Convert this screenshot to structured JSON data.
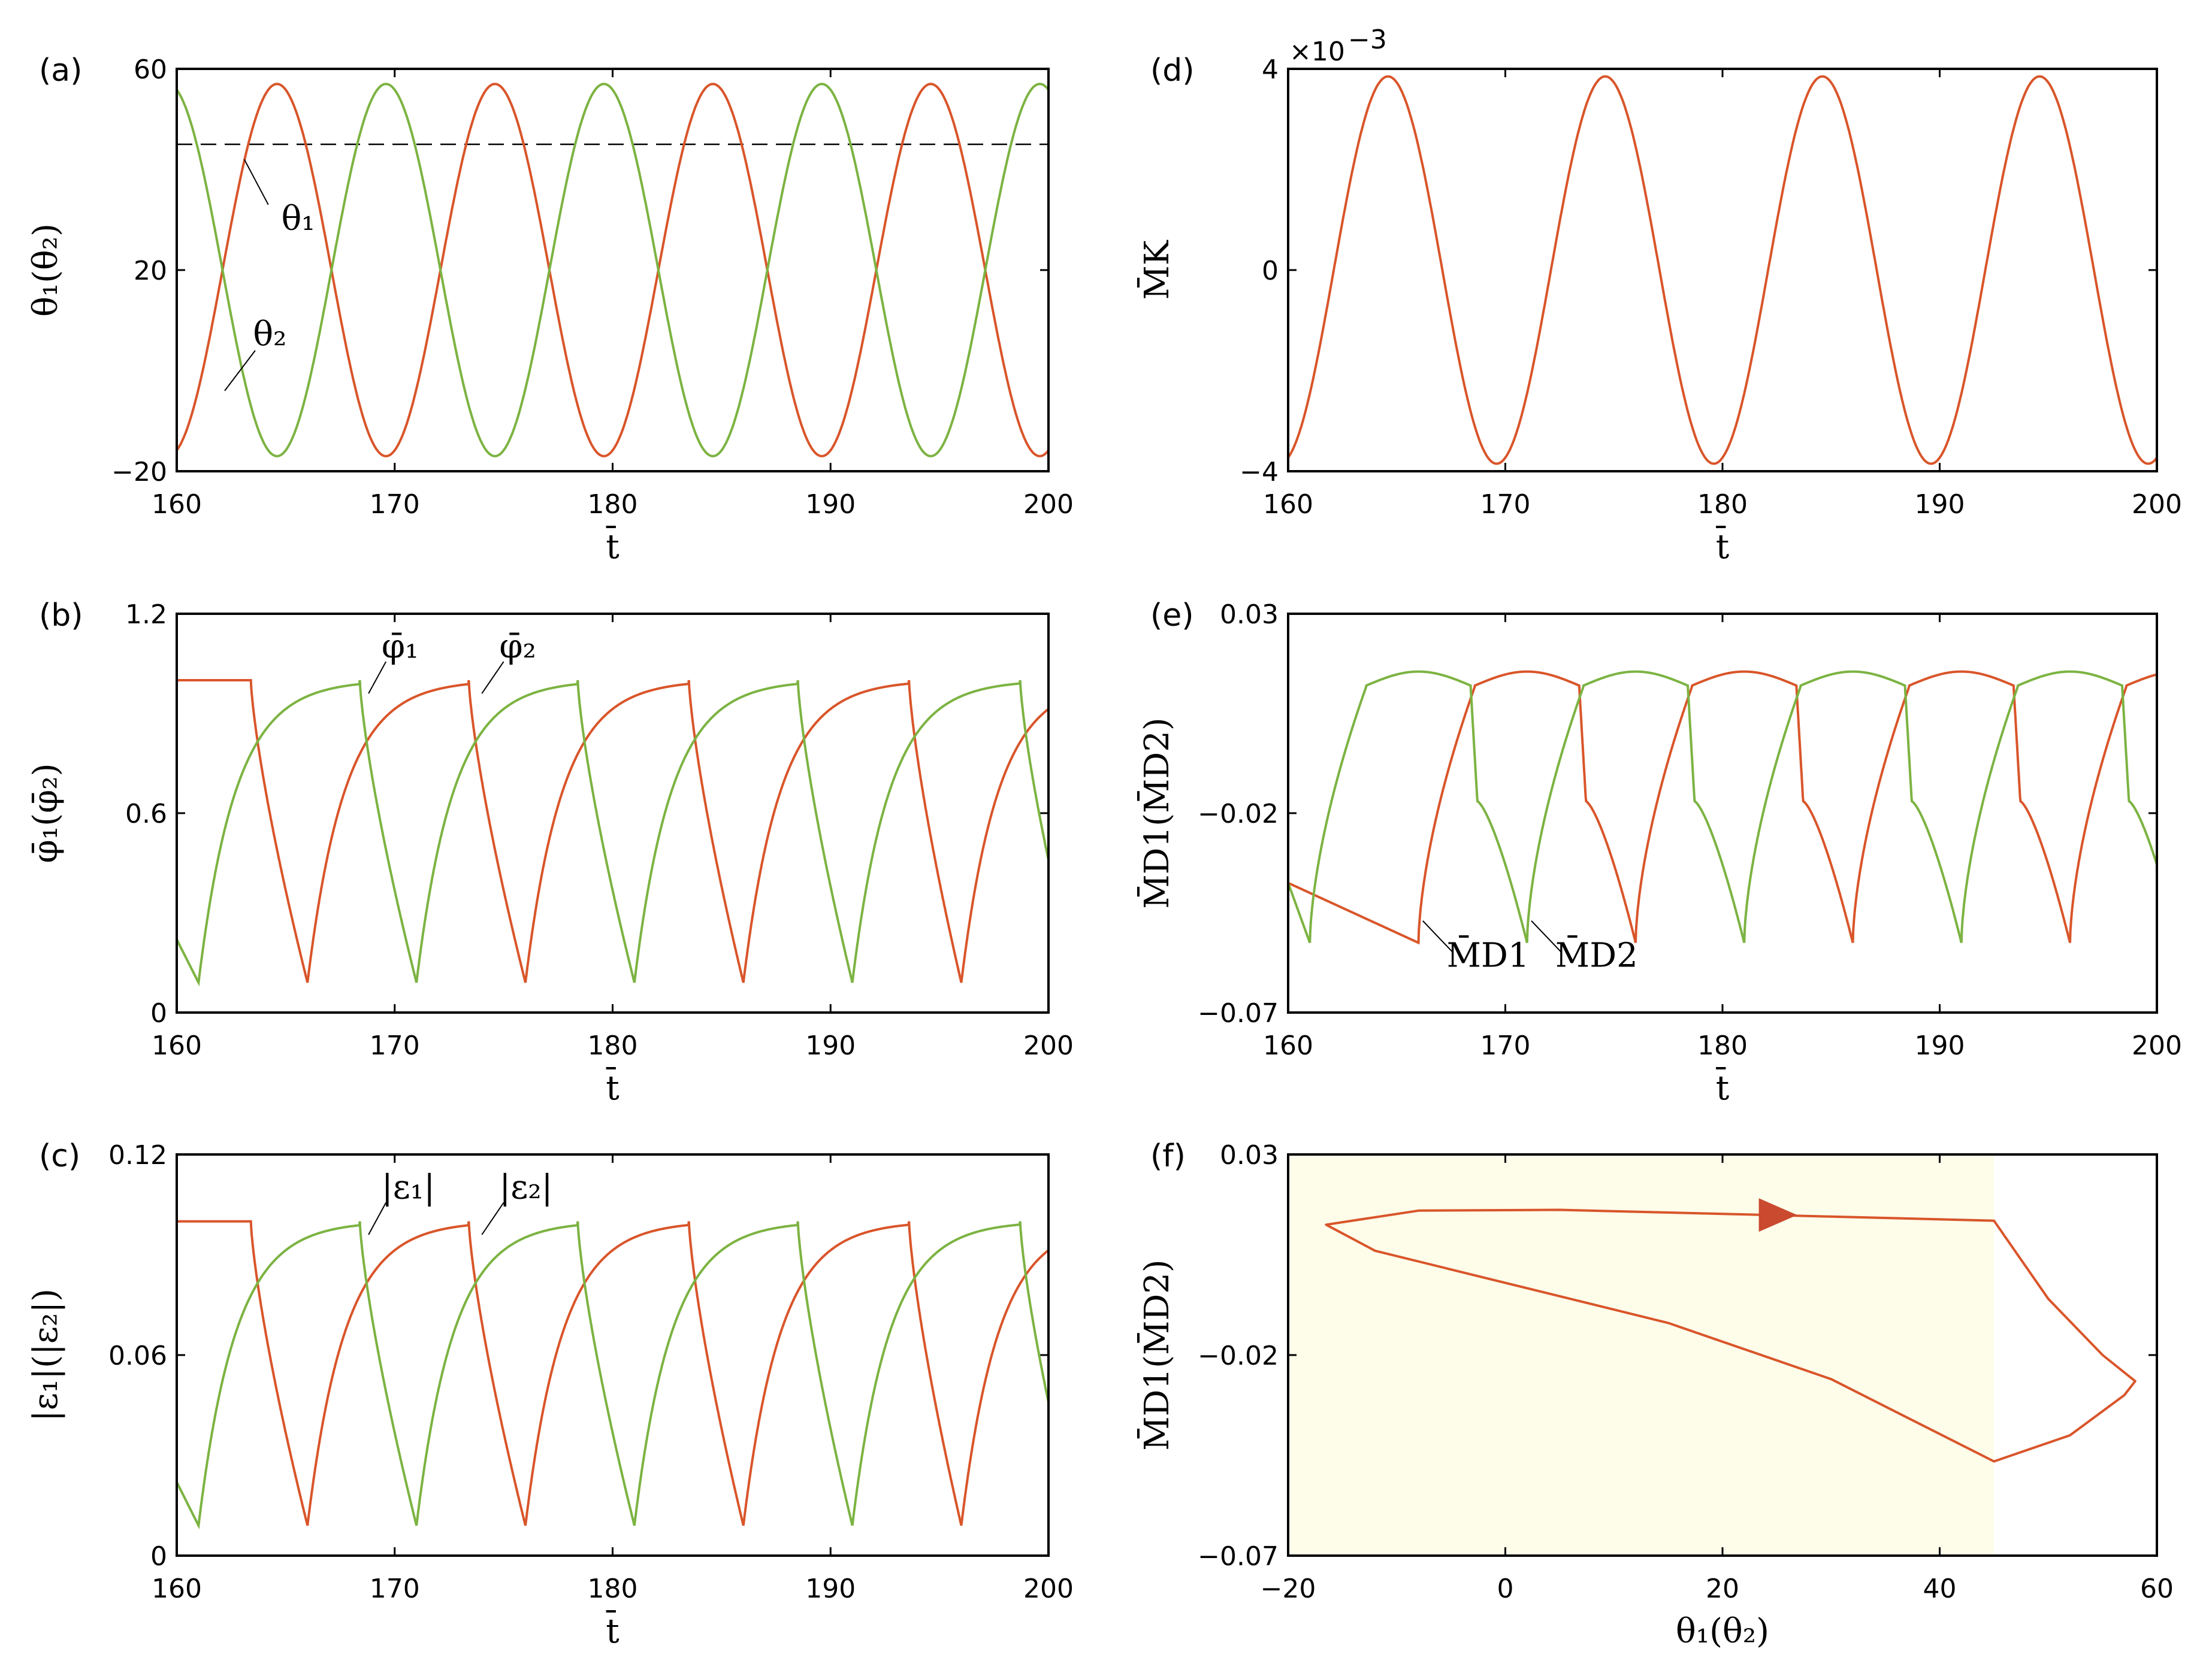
{
  "colors": {
    "series1": "#d9552a",
    "series2": "#7cb342",
    "shade": "#fdfdea",
    "arrow": "#c94a2f"
  },
  "chart_data": [
    {
      "id": "a",
      "panel_label": "(a)",
      "type": "line",
      "xlabel": "t̄",
      "ylabel": "θ₁(θ₂)",
      "xlim": [
        160,
        200
      ],
      "ylim": [
        -20,
        60
      ],
      "xticks": [
        "160",
        "170",
        "180",
        "190",
        "200"
      ],
      "yticks": [
        "−20",
        "20",
        "60"
      ],
      "period": 10,
      "phase_peak_s1": 164.6,
      "amplitude": 37,
      "offset": 20,
      "threshold_line": 45,
      "series": [
        {
          "label": "θ₁",
          "color_key": "series1"
        },
        {
          "label": "θ₂",
          "color_key": "series2"
        }
      ]
    },
    {
      "id": "b",
      "panel_label": "(b)",
      "type": "line",
      "xlabel": "t̄",
      "ylabel": "φ̄₁(φ̄₂)",
      "xlim": [
        160,
        200
      ],
      "ylim": [
        0,
        1.2
      ],
      "xticks": [
        "160",
        "170",
        "180",
        "190",
        "200"
      ],
      "yticks": [
        "0",
        "0.6",
        "1.2"
      ],
      "high": 1.0,
      "low": 0.09,
      "series": [
        {
          "label": "φ̄₁",
          "color_key": "series1",
          "drop_times": [
            163.4,
            173.4,
            183.5,
            193.6
          ],
          "min_times": [
            166.0,
            176.0,
            186.0,
            196.0
          ]
        },
        {
          "label": "φ̄₂",
          "color_key": "series2",
          "drop_times": [
            168.4,
            178.4,
            188.5,
            198.7
          ],
          "min_times": [
            161.0,
            171.0,
            181.0,
            191.0
          ]
        }
      ]
    },
    {
      "id": "c",
      "panel_label": "(c)",
      "type": "line",
      "xlabel": "t̄",
      "ylabel": "|ε₁|(|ε₂|)",
      "xlim": [
        160,
        200
      ],
      "ylim": [
        0,
        0.12
      ],
      "xticks": [
        "160",
        "170",
        "180",
        "190",
        "200"
      ],
      "yticks": [
        "0",
        "0.06",
        "0.12"
      ],
      "high": 0.1,
      "low": 0.009,
      "series": [
        {
          "label": "|ε₁|",
          "color_key": "series1",
          "drop_times": [
            163.4,
            173.4,
            183.5,
            193.6
          ],
          "min_times": [
            166.0,
            176.0,
            186.0,
            196.0
          ]
        },
        {
          "label": "|ε₂|",
          "color_key": "series2",
          "drop_times": [
            168.4,
            178.4,
            188.5,
            198.7
          ],
          "min_times": [
            161.0,
            171.0,
            181.0,
            191.0
          ]
        }
      ]
    },
    {
      "id": "d",
      "panel_label": "(d)",
      "type": "line",
      "xlabel": "t̄",
      "ylabel": "M̄K",
      "xlim": [
        160,
        200
      ],
      "ylim": [
        -4,
        4
      ],
      "xticks": [
        "160",
        "170",
        "180",
        "190",
        "200"
      ],
      "yticks": [
        "−4",
        "0",
        "4"
      ],
      "exponent_label": "×10",
      "exponent_value": "−3",
      "period": 10,
      "phase_peak_s1": 164.6,
      "amplitude": 3.85,
      "series": [
        {
          "label": "M̄K",
          "color_key": "series1"
        }
      ]
    },
    {
      "id": "e",
      "panel_label": "(e)",
      "type": "line",
      "xlabel": "t̄",
      "ylabel": "M̄D1(M̄D2)",
      "xlim": [
        160,
        200
      ],
      "ylim": [
        -0.07,
        0.03
      ],
      "xticks": [
        "160",
        "170",
        "180",
        "190",
        "200"
      ],
      "yticks": [
        "−0.07",
        "−0.02",
        "0.03"
      ],
      "series": [
        {
          "label": "M̄D1",
          "color_key": "series1",
          "min_times": [
            166.0,
            176.0,
            186.0,
            196.0
          ]
        },
        {
          "label": "M̄D2",
          "color_key": "series2",
          "min_times": [
            161.0,
            171.0,
            181.0,
            191.0
          ]
        }
      ]
    },
    {
      "id": "f",
      "panel_label": "(f)",
      "type": "line",
      "xlabel": "θ₁(θ₂)",
      "ylabel": "M̄D1(M̄D2)",
      "xlim": [
        -20,
        60
      ],
      "ylim": [
        -0.07,
        0.03
      ],
      "xticks": [
        "−20",
        "0",
        "20",
        "40",
        "60"
      ],
      "yticks": [
        "−0.07",
        "−0.02",
        "0.03"
      ],
      "shaded_region_x": [
        -20,
        45
      ],
      "loop": [
        [
          45,
          0.0135
        ],
        [
          30,
          0.0145
        ],
        [
          20,
          0.0152
        ],
        [
          5,
          0.0162
        ],
        [
          -8,
          0.016
        ],
        [
          -16.5,
          0.0125
        ],
        [
          -12,
          0.006
        ],
        [
          0,
          -0.002
        ],
        [
          15,
          -0.012
        ],
        [
          30,
          -0.026
        ],
        [
          45,
          -0.0465
        ],
        [
          52,
          -0.04
        ],
        [
          57,
          -0.03
        ],
        [
          58,
          -0.0265
        ],
        [
          55,
          -0.02
        ],
        [
          50,
          -0.006
        ],
        [
          45,
          0.0135
        ]
      ],
      "arrow_at": [
        25,
        0.0149
      ],
      "series": [
        {
          "label": "",
          "color_key": "series1"
        }
      ]
    }
  ]
}
